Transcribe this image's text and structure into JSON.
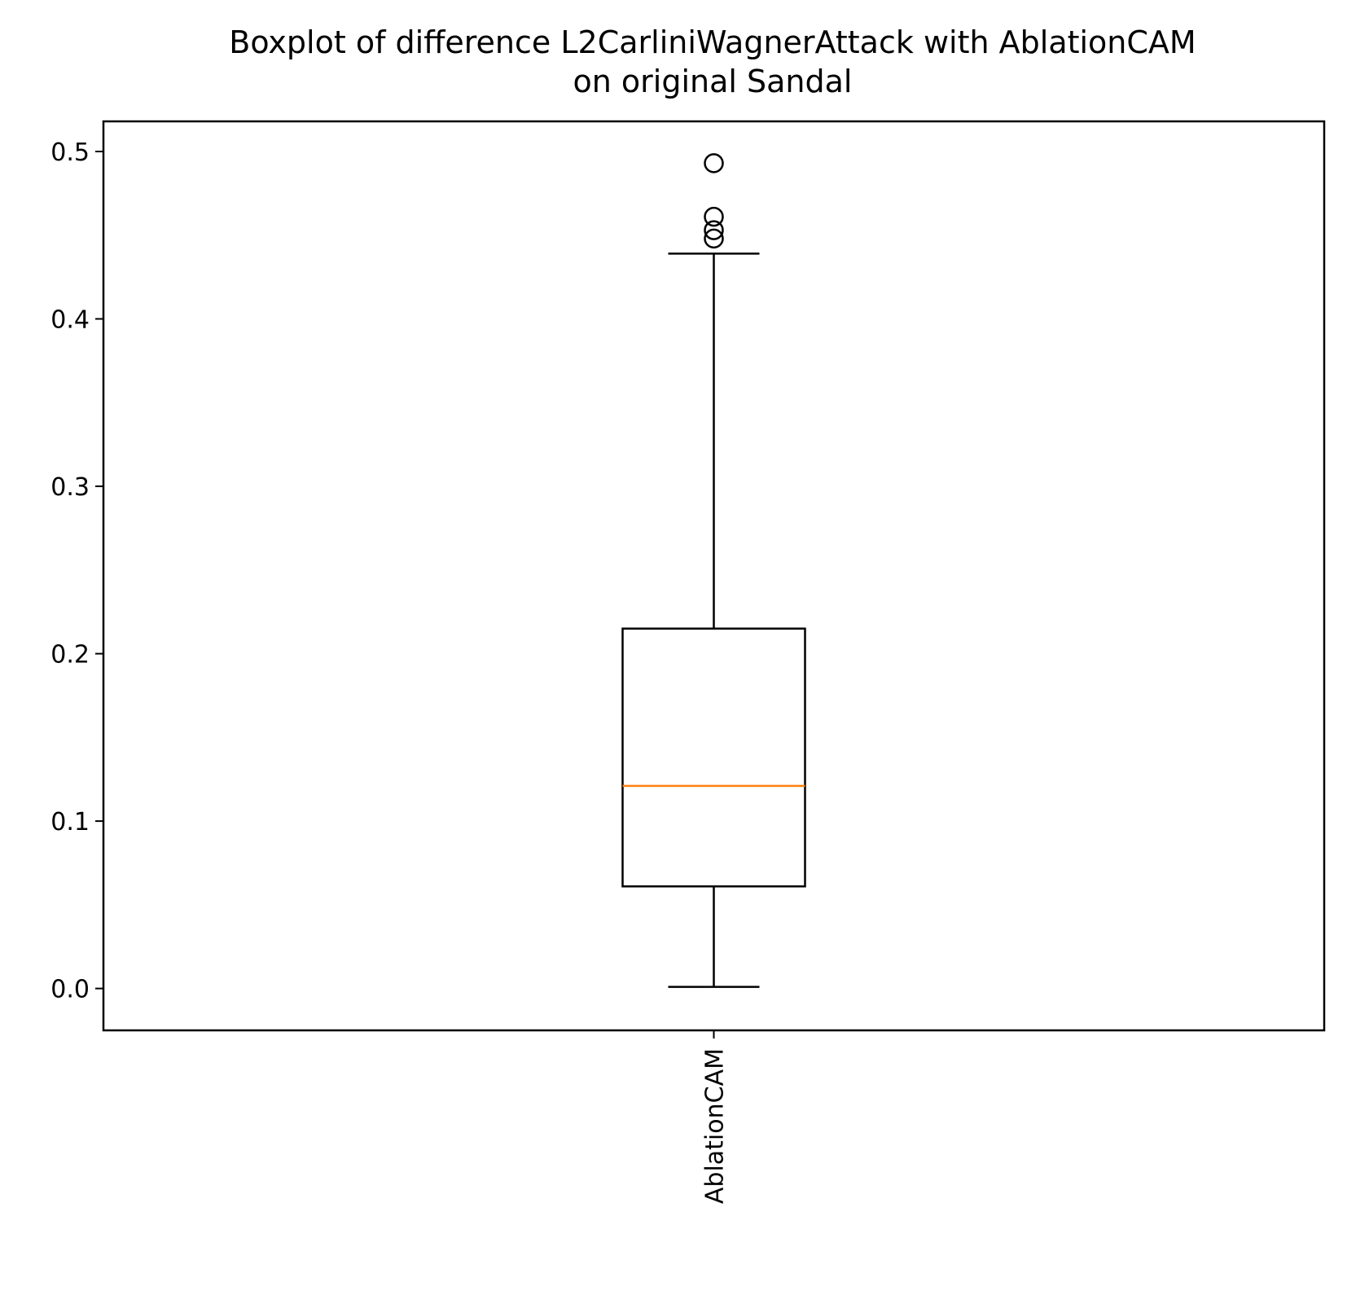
{
  "chart_data": {
    "type": "box",
    "title": "Boxplot of difference L2CarliniWagnerAttack with AblationCAM\non original Sandal",
    "title_lines": [
      "Boxplot of difference L2CarliniWagnerAttack with AblationCAM",
      "on original Sandal"
    ],
    "xlabel": "",
    "ylabel": "",
    "categories": [
      "AblationCAM"
    ],
    "ylim": [
      -0.025,
      0.518
    ],
    "y_ticks": [
      0.0,
      0.1,
      0.2,
      0.3,
      0.4,
      0.5
    ],
    "y_tick_labels": [
      "0.0",
      "0.1",
      "0.2",
      "0.3",
      "0.4",
      "0.5"
    ],
    "grid": false,
    "boxes": [
      {
        "category": "AblationCAM",
        "whisker_low": 0.001,
        "q1": 0.061,
        "median": 0.121,
        "q3": 0.215,
        "whisker_high": 0.439,
        "outliers": [
          0.448,
          0.453,
          0.461,
          0.493
        ]
      }
    ],
    "colors": {
      "box": "#000000",
      "median": "#ff7f0e",
      "outlier": "#000000"
    }
  }
}
